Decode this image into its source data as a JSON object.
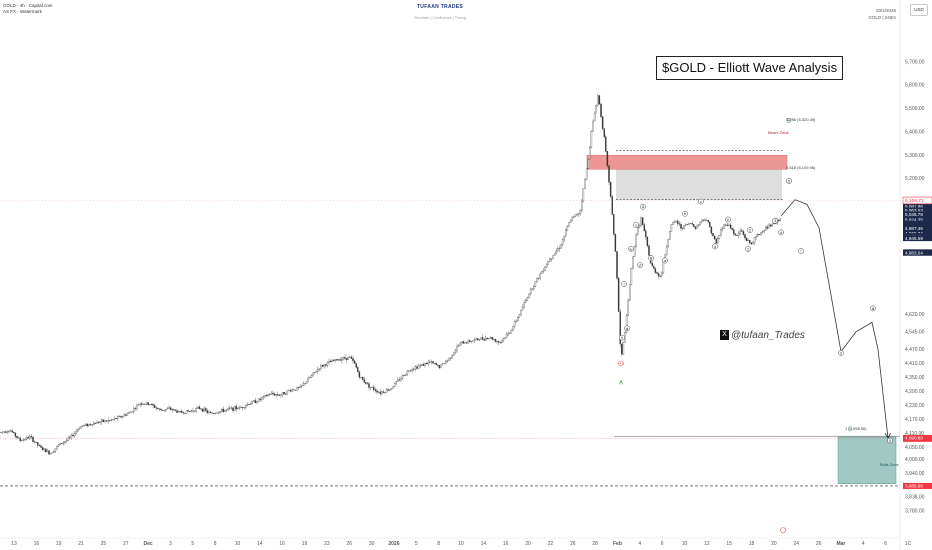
{
  "header": {
    "symbol": "GOLD · 4h · Capital.com",
    "watermark_line": "AS FX · Watermark",
    "brand": "TUFAAN TRADES",
    "brand_sub": "Structure | Confluence | Timing",
    "date": "20/2/2026",
    "symbol_right": "GOLD | 240m",
    "currency": "USD"
  },
  "annotations": {
    "title": "$GOLD - Elliott Wave Analysis",
    "watermark": "@tufaan_Trades",
    "watermark_logo": "X",
    "bears_zone": "Bears Zone",
    "bulls_zone": "Bulls Zone",
    "fib_786": "0.786 (5,320.49)",
    "fib_618": "0.618 (5,109.96)",
    "fib_low": "1 (4,098.56)",
    "wave_B": "B",
    "wave_A": "A",
    "wave_C": "C",
    "low_marker": "4,410"
  },
  "colors": {
    "bull": "#26a69a",
    "bear": "#ef5350",
    "candle": "#333333",
    "bears_zone": "#e57373",
    "bulls_zone": "#7fb7ae",
    "current_price": "#f23645",
    "dark_label": "#1c2a4a"
  },
  "price_labels": [
    {
      "value": "5,081.86",
      "price": 5081.86
    },
    {
      "value": "5,063.53",
      "price": 5063.53
    },
    {
      "value": "5,046.76",
      "price": 5046.76
    },
    {
      "value": "5,024.35",
      "price": 5024.35
    },
    {
      "value": "5,006.83",
      "price": 5006.83
    },
    {
      "value": "5,000.34",
      "price": 5000.34
    },
    {
      "value": "4,993.21",
      "price": 4993.21
    },
    {
      "value": "4,987.46",
      "price": 4987.46
    },
    {
      "value": "4,965.74",
      "price": 4965.74
    },
    {
      "value": "4,953.71",
      "price": 4953.71
    },
    {
      "value": "4,945.59",
      "price": 4945.59
    },
    {
      "value": "4,884.72",
      "price": 4884.72
    },
    {
      "value": "4,883.04",
      "price": 4883.04
    }
  ],
  "current_price": {
    "value": "5,106.73",
    "price": 5106.73
  },
  "red_labels": [
    {
      "value": "4,087.15",
      "price": 4087.15
    },
    {
      "value": "4,090.80",
      "price": 4090.8
    },
    {
      "value": "3,885.66",
      "price": 3885.66
    }
  ],
  "chart_data": {
    "type": "candlestick",
    "title": "$GOLD - Elliott Wave Analysis",
    "ylim": [
      3770,
      5810
    ],
    "y_ticks": [
      "5,700.00",
      "5,600.00",
      "5,500.00",
      "5,400.00",
      "5,300.00",
      "5,200.00",
      "4,620.00",
      "4,545.00",
      "4,470.00",
      "4,410.00",
      "4,350.00",
      "4,290.00",
      "4,230.00",
      "4,170.00",
      "4,110.00",
      "4,050.00",
      "4,000.00",
      "3,940.00",
      "3,880.00",
      "3,838.00",
      "3,780.00"
    ],
    "x_ticks": [
      "13",
      "16",
      "19",
      "21",
      "25",
      "27",
      "Dec",
      "3",
      "5",
      "8",
      "10",
      "14",
      "16",
      "19",
      "23",
      "26",
      "30",
      "2026",
      "5",
      "8",
      "10",
      "14",
      "16",
      "20",
      "22",
      "26",
      "28",
      "Feb",
      "4",
      "6",
      "10",
      "12",
      "15",
      "18",
      "20",
      "24",
      "26",
      "Mar",
      "4",
      "6",
      "1C"
    ],
    "price_path": [
      [
        0,
        4114
      ],
      [
        10,
        4125
      ],
      [
        20,
        4080
      ],
      [
        30,
        4095
      ],
      [
        40,
        4050
      ],
      [
        50,
        4025
      ],
      [
        60,
        4065
      ],
      [
        70,
        4090
      ],
      [
        80,
        4140
      ],
      [
        90,
        4150
      ],
      [
        100,
        4160
      ],
      [
        110,
        4165
      ],
      [
        120,
        4180
      ],
      [
        130,
        4200
      ],
      [
        140,
        4240
      ],
      [
        150,
        4235
      ],
      [
        160,
        4210
      ],
      [
        170,
        4215
      ],
      [
        180,
        4200
      ],
      [
        190,
        4205
      ],
      [
        200,
        4220
      ],
      [
        210,
        4195
      ],
      [
        220,
        4205
      ],
      [
        230,
        4215
      ],
      [
        240,
        4220
      ],
      [
        250,
        4240
      ],
      [
        260,
        4255
      ],
      [
        270,
        4280
      ],
      [
        280,
        4275
      ],
      [
        290,
        4295
      ],
      [
        300,
        4305
      ],
      [
        310,
        4350
      ],
      [
        320,
        4395
      ],
      [
        330,
        4415
      ],
      [
        340,
        4430
      ],
      [
        350,
        4435
      ],
      [
        355,
        4405
      ],
      [
        360,
        4350
      ],
      [
        370,
        4310
      ],
      [
        380,
        4285
      ],
      [
        390,
        4300
      ],
      [
        400,
        4345
      ],
      [
        410,
        4385
      ],
      [
        420,
        4400
      ],
      [
        430,
        4415
      ],
      [
        440,
        4395
      ],
      [
        450,
        4435
      ],
      [
        460,
        4495
      ],
      [
        470,
        4505
      ],
      [
        480,
        4515
      ],
      [
        490,
        4520
      ],
      [
        500,
        4500
      ],
      [
        510,
        4545
      ],
      [
        520,
        4625
      ],
      [
        530,
        4720
      ],
      [
        540,
        4790
      ],
      [
        550,
        4860
      ],
      [
        560,
        4910
      ],
      [
        570,
        5020
      ],
      [
        580,
        5060
      ],
      [
        588,
        5280
      ],
      [
        592,
        5420
      ],
      [
        598,
        5560
      ],
      [
        604,
        5380
      ],
      [
        610,
        5150
      ],
      [
        616,
        4860
      ],
      [
        621,
        4420
      ],
      [
        626,
        4580
      ],
      [
        631,
        4800
      ],
      [
        636,
        4960
      ],
      [
        641,
        5030
      ],
      [
        646,
        4940
      ],
      [
        651,
        4830
      ],
      [
        656,
        4800
      ],
      [
        661,
        4780
      ],
      [
        666,
        4900
      ],
      [
        671,
        5000
      ],
      [
        676,
        5020
      ],
      [
        681,
        4990
      ],
      [
        686,
        5000
      ],
      [
        691,
        5010
      ],
      [
        696,
        4990
      ],
      [
        701,
        5020
      ],
      [
        706,
        5030
      ],
      [
        711,
        4980
      ],
      [
        716,
        4920
      ],
      [
        721,
        4980
      ],
      [
        726,
        5010
      ],
      [
        731,
        4990
      ],
      [
        736,
        4950
      ],
      [
        741,
        4980
      ],
      [
        746,
        4940
      ],
      [
        751,
        4920
      ],
      [
        756,
        4950
      ],
      [
        761,
        4970
      ],
      [
        766,
        4990
      ],
      [
        771,
        5000
      ],
      [
        776,
        5010
      ],
      [
        781,
        5040
      ]
    ],
    "projection": [
      [
        781,
        5040
      ],
      [
        795,
        5110
      ],
      [
        807,
        5090
      ],
      [
        819,
        4990
      ],
      [
        829,
        4750
      ],
      [
        841,
        4460
      ],
      [
        856,
        4545
      ],
      [
        872,
        4585
      ],
      [
        878,
        4470
      ],
      [
        888,
        4090
      ]
    ],
    "bears_zone": {
      "top": 5300,
      "bottom": 5240
    },
    "fib_786": 5320.49,
    "fib_618": 5109.96,
    "bulls_zone": {
      "top": 4095,
      "bottom": 3895
    },
    "support_level": 3885.66,
    "wave_labels": [
      {
        "text": "ii",
        "x": 622,
        "price": 4520
      },
      {
        "text": "i",
        "x": 624,
        "price": 4750
      },
      {
        "text": "iii",
        "x": 627,
        "price": 4560
      },
      {
        "text": "iv",
        "x": 631,
        "price": 4900
      },
      {
        "text": "v",
        "x": 636,
        "price": 5002
      },
      {
        "text": "vi",
        "x": 640,
        "price": 4830
      },
      {
        "text": "A",
        "x": 643,
        "price": 5080
      },
      {
        "text": "B",
        "x": 651,
        "price": 4860
      },
      {
        "text": "a",
        "x": 665,
        "price": 4850
      },
      {
        "text": "b",
        "x": 685,
        "price": 5050
      },
      {
        "text": "c",
        "x": 701,
        "price": 5102
      },
      {
        "text": "d",
        "x": 715,
        "price": 4910
      },
      {
        "text": "e",
        "x": 728,
        "price": 5025
      },
      {
        "text": "1",
        "x": 748,
        "price": 4900
      },
      {
        "text": "2",
        "x": 750,
        "price": 4980
      },
      {
        "text": "3",
        "x": 775,
        "price": 5020
      },
      {
        "text": "4",
        "x": 781,
        "price": 4970
      },
      {
        "text": "5",
        "x": 789,
        "price": 5190
      },
      {
        "text": "i",
        "x": 801,
        "price": 4890
      },
      {
        "text": "ii",
        "x": 841,
        "price": 4455
      },
      {
        "text": "iii",
        "x": 873,
        "price": 4645
      },
      {
        "text": "5",
        "x": 890,
        "price": 4080
      }
    ]
  }
}
